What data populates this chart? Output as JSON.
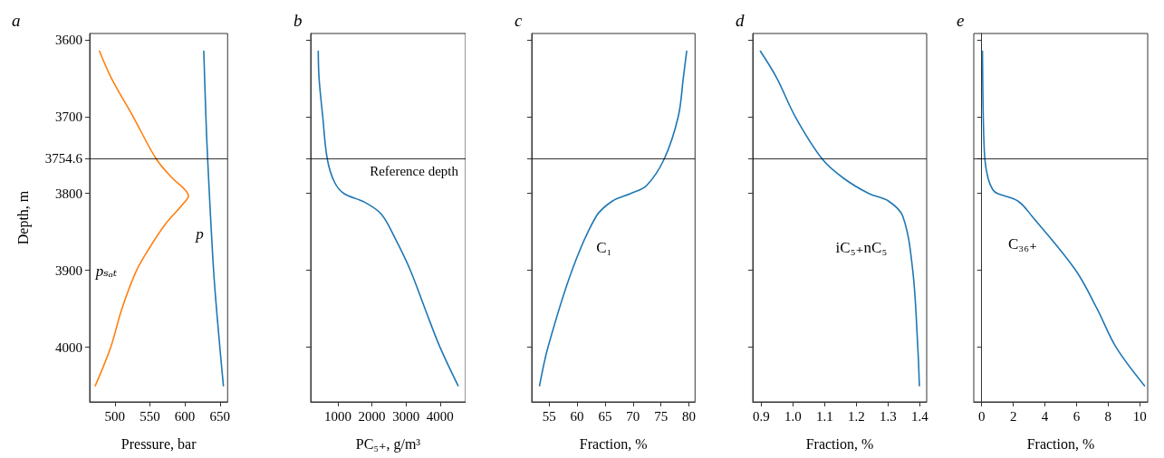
{
  "chart_data": [
    {
      "type": "line",
      "title": "a",
      "xlabel": "Pressure, bar",
      "ylabel": "Depth, m",
      "xlim": [
        464,
        661
      ],
      "xticks": [
        500,
        550,
        600,
        650
      ],
      "ylim": [
        4071,
        3592
      ],
      "yticks": [
        3600,
        3700,
        3754.6,
        3800,
        3900,
        4000
      ],
      "series": [
        {
          "color": "#ff7f0e",
          "x": [
            478,
            495,
            526,
            559,
            582,
            600,
            605,
            596,
            572,
            550,
            531,
            510,
            494,
            472
          ],
          "values": [
            3615,
            3650,
            3700,
            3755,
            3780,
            3795,
            3803,
            3815,
            3840,
            3870,
            3900,
            3950,
            4000,
            4050
          ]
        },
        {
          "color": "#1f77b4",
          "x": [
            627,
            630,
            632.5,
            641,
            648,
            655
          ],
          "values": [
            3615,
            3700,
            3755,
            3900,
            3980,
            4050
          ]
        }
      ],
      "ref_lines": [
        {
          "axis": "y",
          "value": 3754.6
        }
      ],
      "annotations": [
        "pₛₐₜ",
        "p"
      ]
    },
    {
      "type": "line",
      "title": "b",
      "xlabel": "PC₅₊, g/m³",
      "xlim": [
        205,
        4750
      ],
      "xticks": [
        1000,
        2000,
        3000,
        4000
      ],
      "ylim": [
        4071,
        3592
      ],
      "yticks": [
        3600,
        3700,
        3754.6,
        3800,
        3900,
        4000
      ],
      "tick_labels": "x",
      "series": [
        {
          "color": "#1f77b4",
          "x": [
            426,
            450,
            558,
            691,
            900,
            1177,
            1773,
            2280,
            2700,
            3130,
            3560,
            4000,
            4530
          ],
          "values": [
            3615,
            3650,
            3700,
            3755,
            3785,
            3800,
            3811,
            3827,
            3860,
            3900,
            3950,
            4000,
            4050
          ]
        }
      ],
      "ref_lines": [
        {
          "axis": "y",
          "value": 3754.6,
          "label": "Reference depth"
        }
      ]
    },
    {
      "type": "line",
      "title": "c",
      "xlabel": "Fraction, %",
      "xlim": [
        51.9,
        81.1
      ],
      "xticks": [
        55,
        60,
        65,
        70,
        75,
        80
      ],
      "ylim": [
        4071,
        3592
      ],
      "yticks": [
        3600,
        3700,
        3754.6,
        3800,
        3900,
        4000
      ],
      "tick_labels": "x",
      "series": [
        {
          "color": "#1f77b4",
          "x": [
            79.6,
            79.0,
            78.1,
            75.6,
            72.4,
            69.6,
            66.3,
            63.4,
            59.1,
            54.8,
            53.3
          ],
          "values": [
            3615,
            3650,
            3700,
            3755,
            3790,
            3800,
            3810,
            3830,
            3900,
            4000,
            4050
          ]
        }
      ],
      "ref_lines": [
        {
          "axis": "y",
          "value": 3754.6
        }
      ],
      "annotations": [
        "C₁"
      ]
    },
    {
      "type": "line",
      "title": "d",
      "xlabel": "Fraction, %",
      "xlim": [
        0.873,
        1.422
      ],
      "xticks": [
        0.9,
        {
          "value": 1,
          "label": "1.0"
        },
        1.1,
        1.2,
        1.3,
        1.4
      ],
      "ylim": [
        4071,
        3592
      ],
      "yticks": [
        3600,
        3700,
        3754.6,
        3800,
        3900,
        4000
      ],
      "tick_labels": "x",
      "series": [
        {
          "color": "#1f77b4",
          "x": [
            0.897,
            0.949,
            1.007,
            1.092,
            1.159,
            1.239,
            1.302,
            1.347,
            1.378,
            1.394,
            1.399
          ],
          "values": [
            3615,
            3650,
            3700,
            3755,
            3780,
            3800,
            3810,
            3830,
            3900,
            4000,
            4050
          ]
        }
      ],
      "ref_lines": [
        {
          "axis": "y",
          "value": 3754.6
        }
      ],
      "annotations": [
        "iC₅₊nC₅"
      ]
    },
    {
      "type": "line",
      "title": "e",
      "xlabel": "Fraction, %",
      "xlim": [
        -0.5,
        10.5
      ],
      "xticks": [
        0,
        2,
        4,
        6,
        8,
        10
      ],
      "ylim": [
        4071,
        3592
      ],
      "yticks": [
        3600,
        3700,
        3754.6,
        3800,
        3900,
        4000
      ],
      "tick_labels": "x",
      "series": [
        {
          "color": "#1f77b4",
          "x": [
            0.05,
            0.1,
            0.2,
            0.4,
            0.7,
            1.0,
            2.3,
            3.2,
            5.95,
            7.3,
            8.5,
            10.3
          ],
          "values": [
            3615,
            3700,
            3755,
            3780,
            3795,
            3800,
            3810,
            3830,
            3900,
            3950,
            4000,
            4050
          ]
        }
      ],
      "ref_lines": [
        {
          "axis": "y",
          "value": 3754.6
        }
      ],
      "annotations": [
        "C₃₆₊"
      ]
    }
  ]
}
